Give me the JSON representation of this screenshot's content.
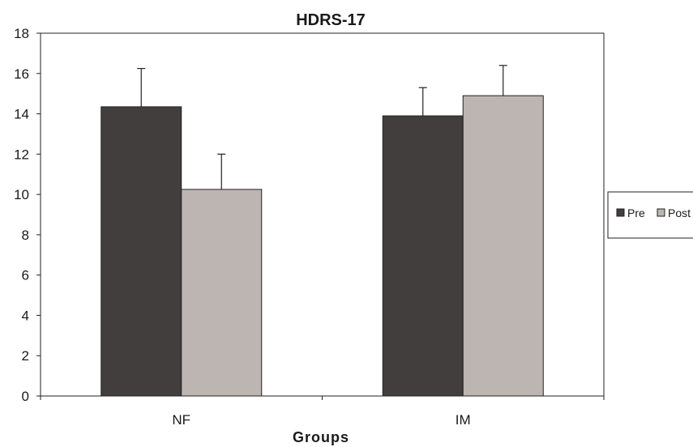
{
  "chart_data": {
    "type": "bar",
    "title": "HDRS-17",
    "xlabel": "Groups",
    "ylabel": "",
    "ylim": [
      0,
      18
    ],
    "yticks": [
      0,
      2,
      4,
      6,
      8,
      10,
      12,
      14,
      16,
      18
    ],
    "categories": [
      "NF",
      "IM"
    ],
    "series": [
      {
        "name": "Pre",
        "values": [
          14.35,
          13.9
        ],
        "errors": [
          1.9,
          1.4
        ],
        "color": "#423e3d"
      },
      {
        "name": "Post",
        "values": [
          10.25,
          14.9
        ],
        "errors": [
          1.75,
          1.5
        ],
        "color": "#bcb5b2"
      }
    ],
    "grid": false,
    "legend": "right"
  }
}
